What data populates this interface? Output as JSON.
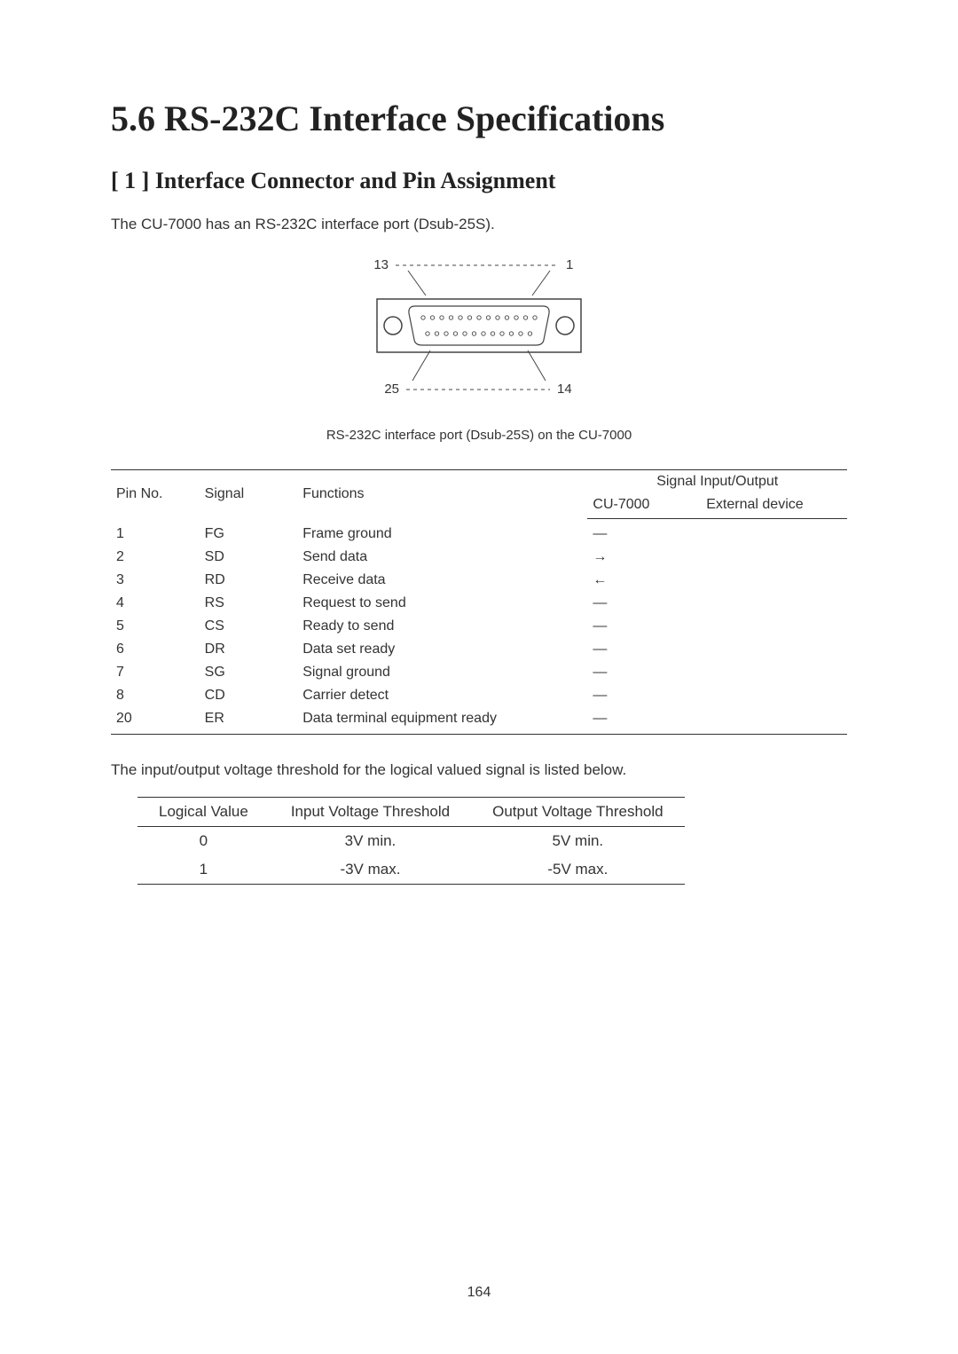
{
  "section_title": "5.6   RS-232C Interface Specifications",
  "subsection_title": "[ 1 ]  Interface Connector and Pin Assignment",
  "intro_text": "The CU-7000 has an RS-232C interface port (Dsub-25S).",
  "diagram": {
    "label_13": "13",
    "label_1": "1",
    "label_25": "25",
    "label_14": "14",
    "stroke": "#444444",
    "dash": "4,4"
  },
  "diagram_caption": "RS-232C interface port (Dsub-25S) on the CU-7000",
  "pin_table": {
    "headers": {
      "pin_no": "Pin No.",
      "signal": "Signal",
      "functions": "Functions",
      "io": "Signal Input/Output",
      "cu": "CU-7000",
      "ext": "External device"
    },
    "rows": [
      {
        "pin": "1",
        "signal": "FG",
        "func": "Frame ground",
        "io": "—"
      },
      {
        "pin": "2",
        "signal": "SD",
        "func": "Send data",
        "io": "→"
      },
      {
        "pin": "3",
        "signal": "RD",
        "func": "Receive data",
        "io": "←"
      },
      {
        "pin": "4",
        "signal": "RS",
        "func": "Request to send",
        "io": "—"
      },
      {
        "pin": "5",
        "signal": "CS",
        "func": "Ready to send",
        "io": "—"
      },
      {
        "pin": "6",
        "signal": "DR",
        "func": "Data set ready",
        "io": "—"
      },
      {
        "pin": "7",
        "signal": "SG",
        "func": "Signal ground",
        "io": "—"
      },
      {
        "pin": "8",
        "signal": "CD",
        "func": "Carrier detect",
        "io": "—"
      },
      {
        "pin": "20",
        "signal": "ER",
        "func": "Data terminal equipment ready",
        "io": "—"
      }
    ]
  },
  "voltage_intro": "The input/output voltage threshold for the logical valued signal is listed below.",
  "voltage_table": {
    "headers": {
      "logical": "Logical Value",
      "input": "Input Voltage Threshold",
      "output": "Output Voltage Threshold"
    },
    "rows": [
      {
        "logical": "0",
        "input": "3V min.",
        "output": "5V min."
      },
      {
        "logical": "1",
        "input": "-3V max.",
        "output": "-5V max."
      }
    ]
  },
  "page_number": "164"
}
